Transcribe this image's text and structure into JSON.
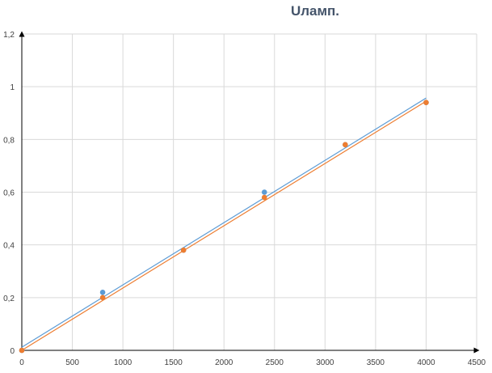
{
  "chart_data": {
    "type": "scatter",
    "title": "Uламп.",
    "xlabel": "",
    "ylabel": "",
    "xlim": [
      0,
      4500
    ],
    "ylim": [
      0,
      1.2
    ],
    "x_ticks": [
      0,
      500,
      1000,
      1500,
      2000,
      2500,
      3000,
      3500,
      4000,
      4500
    ],
    "x_tick_labels": [
      "0",
      "500",
      "1000",
      "1500",
      "2000",
      "2500",
      "3000",
      "3500",
      "4000",
      "4500"
    ],
    "y_ticks": [
      0,
      0.2,
      0.4,
      0.6,
      0.8,
      1.0,
      1.2
    ],
    "y_tick_labels": [
      "0",
      "0,2",
      "0,4",
      "0,6",
      "0,8",
      "1",
      "1,2"
    ],
    "grid": true,
    "legend": "none",
    "series": [
      {
        "color": "#5b9bd5",
        "x": [
          0,
          800,
          1600,
          2400,
          3200,
          4000
        ],
        "y": [
          0,
          0.22,
          0.38,
          0.6,
          0.78,
          0.94
        ],
        "trendline": {
          "type": "linear",
          "x": [
            0,
            4000
          ],
          "y": [
            0.012,
            0.957
          ]
        }
      },
      {
        "color": "#ed7d31",
        "x": [
          0,
          800,
          1600,
          2400,
          3200,
          4000
        ],
        "y": [
          0,
          0.2,
          0.38,
          0.58,
          0.78,
          0.94
        ],
        "trendline": {
          "type": "linear",
          "x": [
            0,
            4000
          ],
          "y": [
            0.0,
            0.945
          ]
        }
      }
    ]
  }
}
